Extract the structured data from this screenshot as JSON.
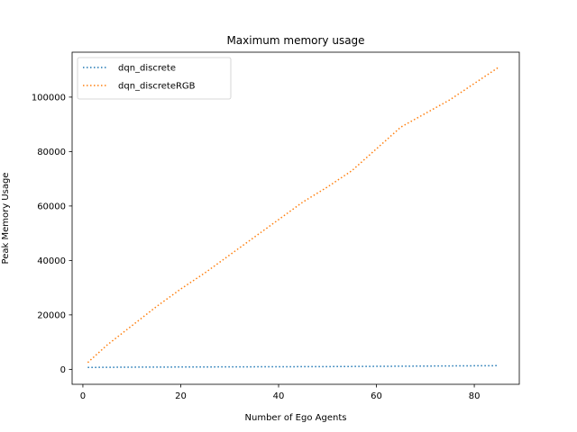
{
  "chart_data": {
    "type": "line",
    "title": "Maximum memory usage",
    "xlabel": "Number of Ego Agents",
    "ylabel": "Peak Memory Usage",
    "xlim": [
      -2.2,
      89.2
    ],
    "ylim": [
      -5500,
      116500
    ],
    "xticks": [
      0,
      20,
      40,
      60,
      80
    ],
    "yticks": [
      0,
      20000,
      40000,
      60000,
      80000,
      100000
    ],
    "grid": false,
    "legend_position": "top-left",
    "series": [
      {
        "name": "dqn_discrete",
        "color": "#1f77b4",
        "linestyle": "dotted",
        "x": [
          1,
          10,
          20,
          30,
          40,
          50,
          55,
          60,
          65,
          70,
          75,
          80,
          85
        ],
        "y": [
          700,
          800,
          850,
          900,
          950,
          1000,
          1050,
          1100,
          1150,
          1200,
          1250,
          1300,
          1350
        ]
      },
      {
        "name": "dqn_discreteRGB",
        "color": "#ff7f0e",
        "linestyle": "dotted",
        "x": [
          1,
          5,
          10,
          15,
          20,
          25,
          30,
          35,
          40,
          45,
          50,
          55,
          60,
          65,
          70,
          75,
          80,
          85
        ],
        "y": [
          2500,
          9000,
          16000,
          23000,
          29500,
          35500,
          42000,
          48500,
          55000,
          61500,
          67000,
          73000,
          81000,
          89000,
          94000,
          99000,
          105000,
          111000
        ]
      }
    ]
  }
}
